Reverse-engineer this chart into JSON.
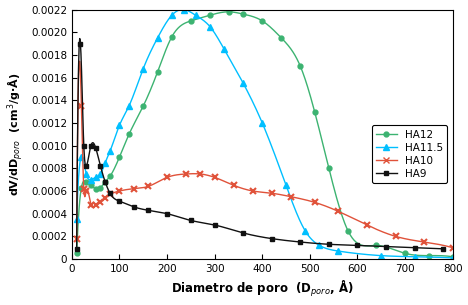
{
  "xlabel": "Diametro de poro  (D$_{poro}$, Å)",
  "ylabel": "dV/dD$_{poro}$  (cm$^3$/g·Å)",
  "xlim": [
    0,
    800
  ],
  "ylim": [
    0,
    0.0022
  ],
  "yticks": [
    0,
    0.0002,
    0.0004,
    0.0006,
    0.0008,
    0.001,
    0.0012,
    0.0014,
    0.0016,
    0.0018,
    0.002,
    0.0022
  ],
  "xticks": [
    0,
    100,
    200,
    300,
    400,
    500,
    600,
    700,
    800
  ],
  "series": {
    "HA12": {
      "color": "#3cb371",
      "marker": "o",
      "markersize": 3.5,
      "x": [
        10,
        20,
        30,
        40,
        50,
        60,
        70,
        80,
        100,
        120,
        150,
        180,
        210,
        250,
        290,
        330,
        360,
        400,
        440,
        480,
        510,
        540,
        580,
        640,
        700,
        750,
        800
      ],
      "y": [
        5e-05,
        0.00063,
        0.00068,
        0.00065,
        0.00062,
        0.00063,
        0.00068,
        0.00073,
        0.0009,
        0.0011,
        0.00135,
        0.00165,
        0.00196,
        0.0021,
        0.00215,
        0.00218,
        0.00216,
        0.0021,
        0.00195,
        0.0017,
        0.0013,
        0.0008,
        0.00025,
        0.00012,
        5e-05,
        3e-05,
        2e-05
      ]
    },
    "HA11.5": {
      "color": "#00bfff",
      "marker": "^",
      "markersize": 4,
      "x": [
        10,
        20,
        30,
        40,
        50,
        60,
        70,
        80,
        100,
        120,
        150,
        180,
        210,
        235,
        260,
        290,
        320,
        360,
        400,
        450,
        490,
        520,
        560,
        650,
        720,
        800
      ],
      "y": [
        0.00035,
        0.0009,
        0.00075,
        0.0007,
        0.00072,
        0.00075,
        0.00085,
        0.00095,
        0.00118,
        0.00135,
        0.00168,
        0.00195,
        0.00215,
        0.0022,
        0.00215,
        0.00205,
        0.00185,
        0.00155,
        0.0012,
        0.00065,
        0.00025,
        0.00012,
        7e-05,
        3e-05,
        2e-05,
        1e-05
      ]
    },
    "HA10": {
      "color": "#e0523a",
      "marker": "x",
      "markersize": 5,
      "x": [
        10,
        20,
        25,
        30,
        40,
        50,
        60,
        70,
        80,
        100,
        130,
        160,
        200,
        240,
        270,
        300,
        340,
        380,
        420,
        460,
        510,
        560,
        620,
        680,
        740,
        800
      ],
      "y": [
        0.00018,
        0.00135,
        0.00062,
        0.0006,
        0.00048,
        0.00048,
        0.0005,
        0.00054,
        0.00057,
        0.0006,
        0.00062,
        0.00064,
        0.00072,
        0.00075,
        0.00075,
        0.00072,
        0.00065,
        0.0006,
        0.00058,
        0.00055,
        0.0005,
        0.00042,
        0.0003,
        0.0002,
        0.00015,
        0.0001
      ]
    },
    "HA9": {
      "color": "#111111",
      "marker": "s",
      "markersize": 3.5,
      "x": [
        10,
        18,
        25,
        30,
        40,
        50,
        60,
        70,
        80,
        100,
        130,
        160,
        200,
        250,
        300,
        360,
        420,
        480,
        540,
        600,
        660,
        720,
        780
      ],
      "y": [
        9e-05,
        0.0019,
        0.001,
        0.00082,
        0.001,
        0.00098,
        0.00082,
        0.00068,
        0.00058,
        0.00051,
        0.00046,
        0.00043,
        0.0004,
        0.00034,
        0.0003,
        0.00023,
        0.00018,
        0.00015,
        0.00013,
        0.00012,
        0.00011,
        0.0001,
        9e-05
      ]
    }
  },
  "legend_order": [
    "HA12",
    "HA11.5",
    "HA10",
    "HA9"
  ],
  "background_color": "#ffffff"
}
